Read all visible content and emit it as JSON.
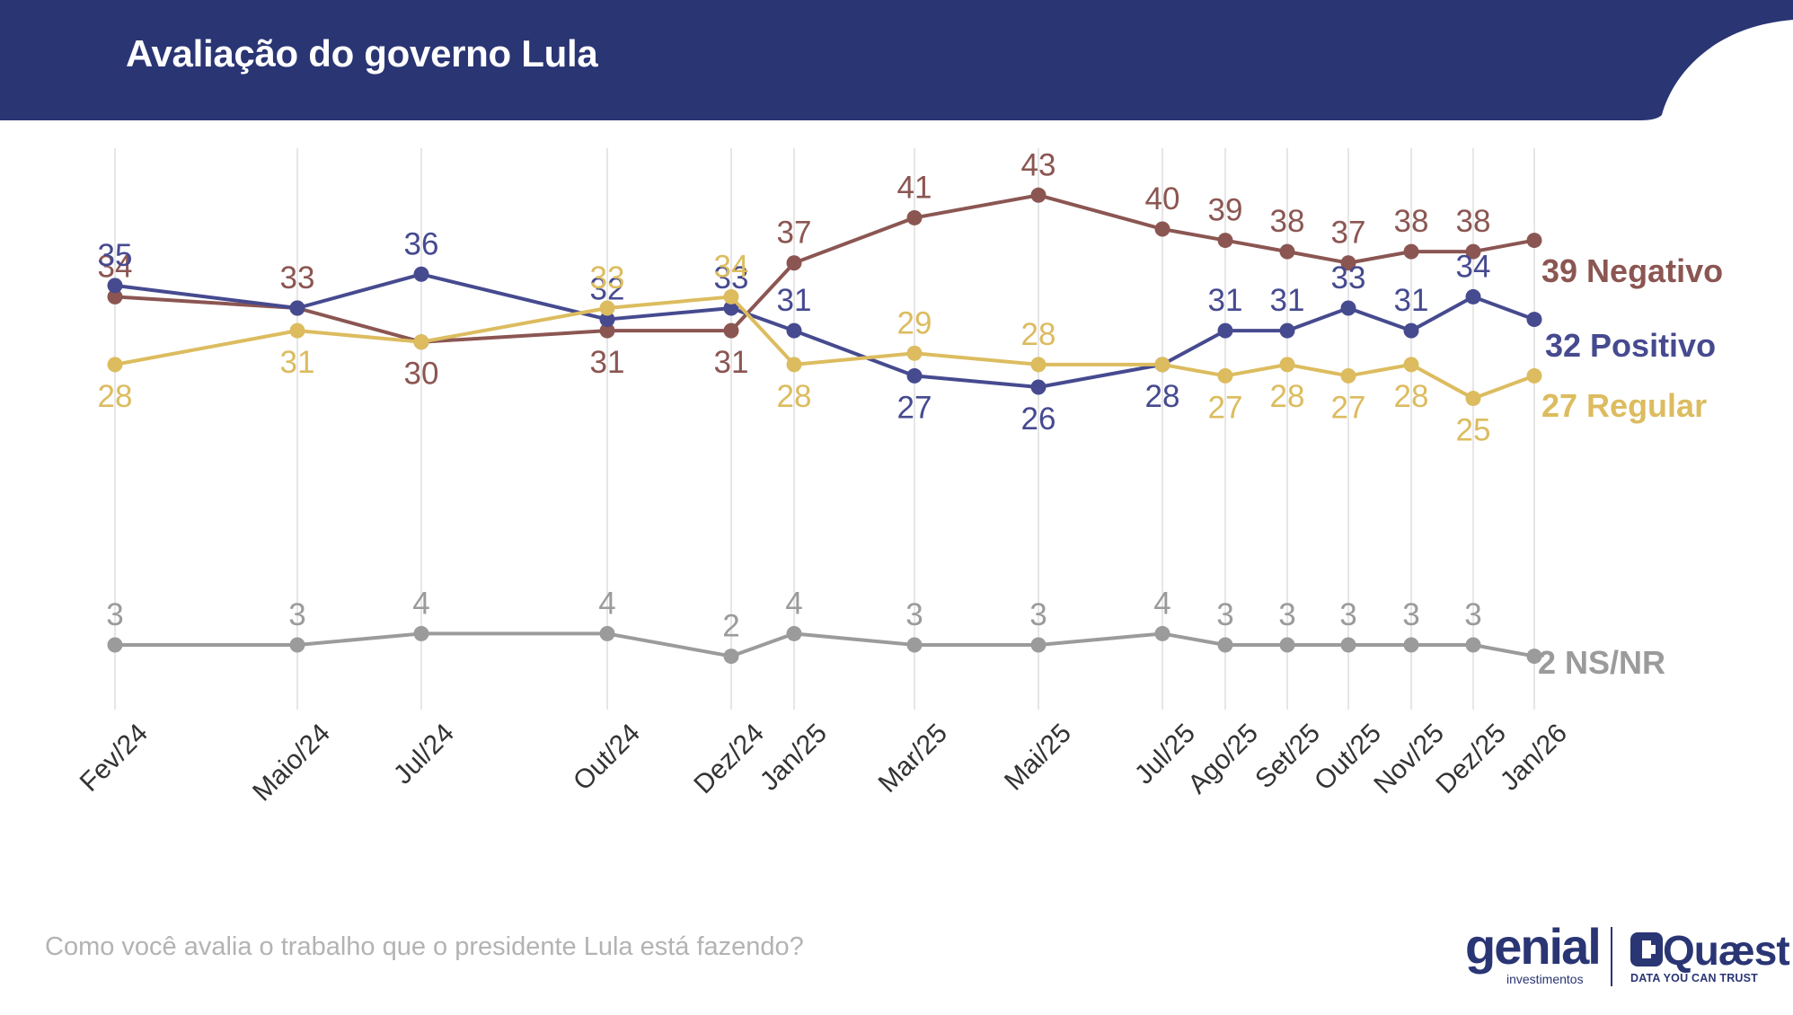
{
  "header": {
    "title": "Avaliação do governo Lula",
    "background_color": "#2a3574"
  },
  "footer": {
    "question": "Como você avalia o trabalho que o presidente Lula está fazendo?"
  },
  "logos": {
    "genial": "genial",
    "genial_sub": "investimentos",
    "quaest": "Quæst",
    "quaest_sub": "DATA YOU CAN TRUST"
  },
  "chart_data": {
    "type": "line",
    "title": "Avaliação do governo Lula",
    "xlabel": "",
    "ylabel": "",
    "grid": "vertical",
    "legend": "end-of-line labels",
    "categories": [
      "Fev/24",
      "Maio/24",
      "Jul/24",
      "Out/24",
      "Dez/24",
      "Jan/25",
      "Mar/25",
      "Mai/25",
      "Jul/25",
      "Ago/25",
      "Set/25",
      "Out/25",
      "Nov/25",
      "Dez/25",
      "Jan/26"
    ],
    "series": [
      {
        "name": "Negativo",
        "color": "#8b5652",
        "end_label": "39 Negativo",
        "values": [
          34,
          33,
          30,
          31,
          31,
          37,
          41,
          43,
          40,
          39,
          38,
          37,
          38,
          38,
          39
        ],
        "labels": [
          "34",
          "33",
          "30",
          "31",
          "31",
          "37",
          "41",
          "43",
          "40",
          "39",
          "38",
          "37",
          "38",
          "38",
          ""
        ],
        "label_side": [
          "above",
          "above",
          "below",
          "below",
          "below",
          "above",
          "above",
          "above",
          "above",
          "above",
          "above",
          "above",
          "above",
          "above",
          "none"
        ]
      },
      {
        "name": "Positivo",
        "color": "#464a8f",
        "end_label": "32 Positivo",
        "values": [
          35,
          33,
          36,
          32,
          33,
          31,
          27,
          26,
          28,
          31,
          31,
          33,
          31,
          34,
          32
        ],
        "labels": [
          "35",
          "",
          "36",
          "32",
          "33",
          "31",
          "27",
          "26",
          "28",
          "31",
          "31",
          "33",
          "31",
          "34",
          ""
        ],
        "label_side": [
          "above",
          "none",
          "above",
          "above",
          "above",
          "above",
          "below",
          "below",
          "below",
          "above",
          "above",
          "above",
          "above",
          "above",
          "none"
        ]
      },
      {
        "name": "Regular",
        "color": "#dcbc5f",
        "end_label": "27 Regular",
        "values": [
          28,
          31,
          30,
          33,
          34,
          28,
          29,
          28,
          28,
          27,
          28,
          27,
          28,
          25,
          27
        ],
        "labels": [
          "28",
          "31",
          "",
          "33",
          "34",
          "28",
          "29",
          "28",
          "",
          "27",
          "28",
          "27",
          "28",
          "25",
          ""
        ],
        "label_side": [
          "below",
          "below",
          "none",
          "above",
          "above",
          "below",
          "above",
          "above",
          "none",
          "below",
          "below",
          "below",
          "below",
          "below",
          "none"
        ]
      },
      {
        "name": "NS/NR",
        "color": "#9b9b9b",
        "end_label": "2 NS/NR",
        "values": [
          3,
          3,
          4,
          4,
          2,
          4,
          3,
          3,
          4,
          3,
          3,
          3,
          3,
          3,
          2
        ],
        "labels": [
          "3",
          "3",
          "4",
          "4",
          "2",
          "4",
          "3",
          "3",
          "4",
          "3",
          "3",
          "3",
          "3",
          "3",
          ""
        ],
        "label_side": [
          "above",
          "above",
          "above",
          "above",
          "above",
          "above",
          "above",
          "above",
          "above",
          "above",
          "above",
          "above",
          "above",
          "above",
          "none"
        ]
      }
    ]
  }
}
